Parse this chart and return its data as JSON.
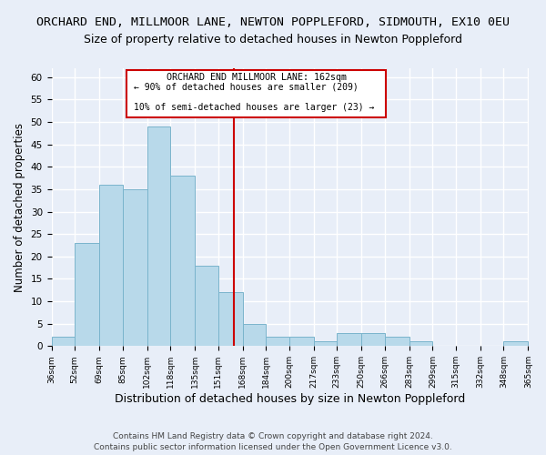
{
  "title": "ORCHARD END, MILLMOOR LANE, NEWTON POPPLEFORD, SIDMOUTH, EX10 0EU",
  "subtitle": "Size of property relative to detached houses in Newton Poppleford",
  "xlabel": "Distribution of detached houses by size in Newton Poppleford",
  "ylabel": "Number of detached properties",
  "bin_edges": [
    36,
    52,
    69,
    85,
    102,
    118,
    135,
    151,
    168,
    184,
    200,
    217,
    233,
    250,
    266,
    283,
    299,
    315,
    332,
    348,
    365
  ],
  "bar_heights": [
    2,
    23,
    36,
    35,
    49,
    38,
    18,
    12,
    5,
    2,
    2,
    1,
    3,
    3,
    2,
    1,
    0,
    0,
    0,
    1
  ],
  "bar_color": "#b8d9ea",
  "bar_edge_color": "#7ab4cc",
  "vline_x": 162,
  "vline_color": "#cc0000",
  "annotation_line1": "ORCHARD END MILLMOOR LANE: 162sqm",
  "annotation_line2": "← 90% of detached houses are smaller (209)",
  "annotation_line3": "10% of semi-detached houses are larger (23) →",
  "annotation_box_edgecolor": "#cc0000",
  "annotation_bg": "#ffffff",
  "ylim": [
    0,
    62
  ],
  "yticks": [
    0,
    5,
    10,
    15,
    20,
    25,
    30,
    35,
    40,
    45,
    50,
    55,
    60
  ],
  "footnote1": "Contains HM Land Registry data © Crown copyright and database right 2024.",
  "footnote2": "Contains public sector information licensed under the Open Government Licence v3.0.",
  "background_color": "#e8eef8",
  "grid_color": "#ffffff",
  "title_fontsize": 9.5,
  "subtitle_fontsize": 9,
  "xlabel_fontsize": 9,
  "ylabel_fontsize": 8.5,
  "footnote_fontsize": 6.5
}
